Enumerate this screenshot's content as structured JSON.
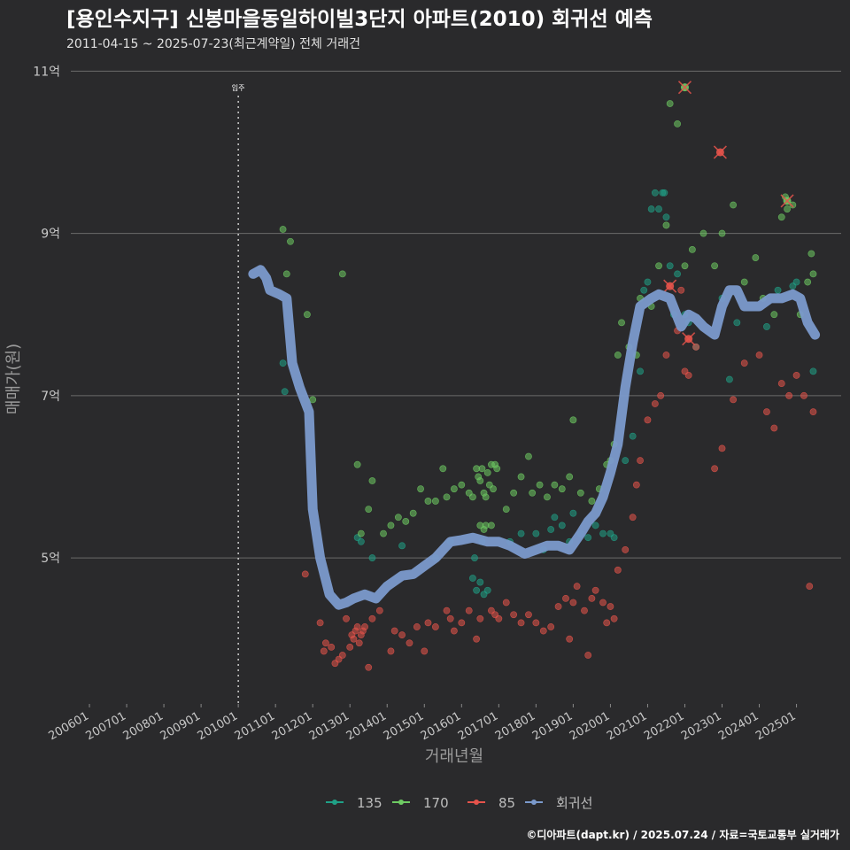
{
  "chart_data": {
    "type": "scatter",
    "title": "[용인수지구] 신봉마을동일하이빌3단지 아파트(2010) 회귀선 예측",
    "subtitle": "2011-04-15 ~ 2025-07-23(최근계약일) 전체 거래건",
    "xlabel": "거래년월",
    "ylabel": "매매가(원)",
    "caption": "©디아파트(dapt.kr) / 2025.07.24 / 자료=국토교통부 실거래가",
    "annotation": {
      "label": "입주",
      "year": 2010.0
    },
    "xlim": [
      2005.5,
      2026.2
    ],
    "ylim": [
      3.2,
      11.2
    ],
    "y_ticks": [
      {
        "value": 5,
        "label": "5억"
      },
      {
        "value": 7,
        "label": "7억"
      },
      {
        "value": 9,
        "label": "9억"
      },
      {
        "value": 11,
        "label": "11억"
      }
    ],
    "x_ticks": [
      {
        "value": 2006,
        "label": "200601"
      },
      {
        "value": 2007,
        "label": "200701"
      },
      {
        "value": 2008,
        "label": "200801"
      },
      {
        "value": 2009,
        "label": "200901"
      },
      {
        "value": 2010,
        "label": "201001"
      },
      {
        "value": 2011,
        "label": "201101"
      },
      {
        "value": 2012,
        "label": "201201"
      },
      {
        "value": 2013,
        "label": "201301"
      },
      {
        "value": 2014,
        "label": "201401"
      },
      {
        "value": 2015,
        "label": "201501"
      },
      {
        "value": 2016,
        "label": "201601"
      },
      {
        "value": 2017,
        "label": "201701"
      },
      {
        "value": 2018,
        "label": "201801"
      },
      {
        "value": 2019,
        "label": "201901"
      },
      {
        "value": 2020,
        "label": "202001"
      },
      {
        "value": 2021,
        "label": "202101"
      },
      {
        "value": 2022,
        "label": "202201"
      },
      {
        "value": 2023,
        "label": "202301"
      },
      {
        "value": 2024,
        "label": "202401"
      },
      {
        "value": 2025,
        "label": "202501"
      }
    ],
    "legend": [
      {
        "name": "135",
        "color": "#1fa187"
      },
      {
        "name": "170",
        "color": "#6ecb63"
      },
      {
        "name": "85",
        "color": "#e5534b"
      },
      {
        "name": "회귀선",
        "color": "#7b9acc"
      }
    ],
    "series": [
      {
        "name": "135",
        "color": "#1fa187",
        "points": [
          [
            2011.2,
            7.4
          ],
          [
            2011.25,
            7.05
          ],
          [
            2013.2,
            5.25
          ],
          [
            2013.3,
            5.2
          ],
          [
            2013.6,
            5.0
          ],
          [
            2014.4,
            5.15
          ],
          [
            2015.3,
            5.0
          ],
          [
            2015.7,
            5.2
          ],
          [
            2016.3,
            4.75
          ],
          [
            2016.4,
            4.6
          ],
          [
            2016.5,
            4.7
          ],
          [
            2016.6,
            4.55
          ],
          [
            2016.35,
            5.0
          ],
          [
            2016.55,
            5.2
          ],
          [
            2016.7,
            4.6
          ],
          [
            2017.3,
            5.2
          ],
          [
            2017.6,
            5.3
          ],
          [
            2018.0,
            5.3
          ],
          [
            2018.2,
            5.1
          ],
          [
            2018.4,
            5.35
          ],
          [
            2018.5,
            5.5
          ],
          [
            2018.7,
            5.4
          ],
          [
            2018.9,
            5.2
          ],
          [
            2019.0,
            5.55
          ],
          [
            2019.2,
            5.3
          ],
          [
            2019.4,
            5.25
          ],
          [
            2019.6,
            5.4
          ],
          [
            2019.8,
            5.3
          ],
          [
            2020.0,
            5.3
          ],
          [
            2020.1,
            5.25
          ],
          [
            2020.4,
            6.2
          ],
          [
            2020.6,
            6.5
          ],
          [
            2020.8,
            7.3
          ],
          [
            2020.9,
            8.3
          ],
          [
            2021.0,
            8.4
          ],
          [
            2021.1,
            9.3
          ],
          [
            2021.2,
            9.5
          ],
          [
            2021.3,
            9.3
          ],
          [
            2021.4,
            9.5
          ],
          [
            2021.45,
            9.5
          ],
          [
            2021.5,
            9.2
          ],
          [
            2021.6,
            8.6
          ],
          [
            2021.7,
            8.0
          ],
          [
            2021.8,
            8.5
          ],
          [
            2022.0,
            8.0
          ],
          [
            2022.1,
            7.9
          ],
          [
            2022.3,
            7.6
          ],
          [
            2023.0,
            8.2
          ],
          [
            2023.2,
            7.2
          ],
          [
            2023.4,
            7.9
          ],
          [
            2024.2,
            7.85
          ],
          [
            2024.5,
            8.3
          ],
          [
            2024.9,
            8.35
          ],
          [
            2025.0,
            8.4
          ],
          [
            2025.45,
            7.3
          ]
        ]
      },
      {
        "name": "170",
        "color": "#6ecb63",
        "points": [
          [
            2011.2,
            9.05
          ],
          [
            2011.3,
            8.5
          ],
          [
            2011.4,
            8.9
          ],
          [
            2011.85,
            8.0
          ],
          [
            2012.0,
            6.95
          ],
          [
            2012.8,
            8.5
          ],
          [
            2013.2,
            6.15
          ],
          [
            2013.3,
            5.3
          ],
          [
            2013.5,
            5.6
          ],
          [
            2013.6,
            5.95
          ],
          [
            2013.9,
            5.3
          ],
          [
            2014.1,
            5.4
          ],
          [
            2014.3,
            5.5
          ],
          [
            2014.5,
            5.45
          ],
          [
            2014.7,
            5.55
          ],
          [
            2014.9,
            5.85
          ],
          [
            2015.1,
            5.7
          ],
          [
            2015.3,
            5.7
          ],
          [
            2015.5,
            6.1
          ],
          [
            2015.6,
            5.75
          ],
          [
            2015.8,
            5.85
          ],
          [
            2016.0,
            5.9
          ],
          [
            2016.2,
            5.8
          ],
          [
            2016.3,
            5.75
          ],
          [
            2016.4,
            6.1
          ],
          [
            2016.45,
            6.0
          ],
          [
            2016.5,
            5.95
          ],
          [
            2016.55,
            6.1
          ],
          [
            2016.6,
            5.8
          ],
          [
            2016.65,
            5.75
          ],
          [
            2016.7,
            6.05
          ],
          [
            2016.75,
            5.9
          ],
          [
            2016.8,
            6.15
          ],
          [
            2016.85,
            5.85
          ],
          [
            2016.9,
            6.15
          ],
          [
            2016.95,
            6.1
          ],
          [
            2016.5,
            5.4
          ],
          [
            2016.6,
            5.35
          ],
          [
            2016.65,
            5.4
          ],
          [
            2016.8,
            5.4
          ],
          [
            2017.2,
            5.6
          ],
          [
            2017.4,
            5.8
          ],
          [
            2017.6,
            6.0
          ],
          [
            2017.8,
            6.25
          ],
          [
            2017.9,
            5.8
          ],
          [
            2018.1,
            5.9
          ],
          [
            2018.3,
            5.75
          ],
          [
            2018.5,
            5.9
          ],
          [
            2018.7,
            5.85
          ],
          [
            2018.9,
            6.0
          ],
          [
            2019.0,
            6.7
          ],
          [
            2019.2,
            5.8
          ],
          [
            2019.5,
            5.7
          ],
          [
            2019.7,
            5.85
          ],
          [
            2019.9,
            6.15
          ],
          [
            2020.0,
            6.2
          ],
          [
            2020.1,
            6.4
          ],
          [
            2020.2,
            7.5
          ],
          [
            2020.3,
            7.9
          ],
          [
            2020.5,
            7.6
          ],
          [
            2020.7,
            7.5
          ],
          [
            2020.8,
            8.2
          ],
          [
            2021.1,
            8.1
          ],
          [
            2021.3,
            8.6
          ],
          [
            2021.5,
            9.1
          ],
          [
            2021.6,
            10.6
          ],
          [
            2021.8,
            10.35
          ],
          [
            2022.0,
            8.6
          ],
          [
            2022.2,
            8.8
          ],
          [
            2022.5,
            9.0
          ],
          [
            2022.8,
            8.6
          ],
          [
            2023.0,
            9.0
          ],
          [
            2023.3,
            9.35
          ],
          [
            2023.6,
            8.4
          ],
          [
            2023.9,
            8.7
          ],
          [
            2024.1,
            8.2
          ],
          [
            2024.4,
            8.0
          ],
          [
            2024.6,
            9.2
          ],
          [
            2024.7,
            9.45
          ],
          [
            2024.75,
            9.3
          ],
          [
            2024.9,
            9.35
          ],
          [
            2025.1,
            8.0
          ],
          [
            2025.3,
            8.4
          ],
          [
            2025.4,
            8.75
          ],
          [
            2025.45,
            8.5
          ]
        ]
      },
      {
        "name": "85",
        "color": "#e5534b",
        "points": [
          [
            2011.8,
            4.8
          ],
          [
            2012.2,
            4.2
          ],
          [
            2012.3,
            3.85
          ],
          [
            2012.35,
            3.95
          ],
          [
            2012.5,
            3.9
          ],
          [
            2012.6,
            3.7
          ],
          [
            2012.7,
            3.75
          ],
          [
            2012.8,
            3.8
          ],
          [
            2012.9,
            4.25
          ],
          [
            2013.0,
            3.9
          ],
          [
            2013.05,
            4.05
          ],
          [
            2013.1,
            4.0
          ],
          [
            2013.15,
            4.1
          ],
          [
            2013.2,
            4.15
          ],
          [
            2013.25,
            3.95
          ],
          [
            2013.3,
            4.05
          ],
          [
            2013.35,
            4.1
          ],
          [
            2013.4,
            4.15
          ],
          [
            2013.5,
            3.65
          ],
          [
            2013.6,
            4.25
          ],
          [
            2013.8,
            4.35
          ],
          [
            2014.1,
            3.85
          ],
          [
            2014.2,
            4.1
          ],
          [
            2014.4,
            4.05
          ],
          [
            2014.6,
            3.95
          ],
          [
            2014.8,
            4.15
          ],
          [
            2015.0,
            3.85
          ],
          [
            2015.1,
            4.2
          ],
          [
            2015.3,
            4.15
          ],
          [
            2015.6,
            4.35
          ],
          [
            2015.7,
            4.25
          ],
          [
            2015.8,
            4.1
          ],
          [
            2016.0,
            4.2
          ],
          [
            2016.2,
            4.35
          ],
          [
            2016.4,
            4.0
          ],
          [
            2016.5,
            4.25
          ],
          [
            2016.8,
            4.35
          ],
          [
            2016.9,
            4.3
          ],
          [
            2017.0,
            4.25
          ],
          [
            2017.2,
            4.45
          ],
          [
            2017.4,
            4.3
          ],
          [
            2017.6,
            4.2
          ],
          [
            2017.8,
            4.3
          ],
          [
            2018.0,
            4.2
          ],
          [
            2018.2,
            4.1
          ],
          [
            2018.4,
            4.15
          ],
          [
            2018.6,
            4.4
          ],
          [
            2018.8,
            4.5
          ],
          [
            2018.9,
            4.0
          ],
          [
            2019.0,
            4.45
          ],
          [
            2019.1,
            4.65
          ],
          [
            2019.3,
            4.35
          ],
          [
            2019.4,
            3.8
          ],
          [
            2019.5,
            4.5
          ],
          [
            2019.6,
            4.6
          ],
          [
            2019.8,
            4.45
          ],
          [
            2019.9,
            4.2
          ],
          [
            2020.0,
            4.4
          ],
          [
            2020.1,
            4.25
          ],
          [
            2020.2,
            4.85
          ],
          [
            2020.4,
            5.1
          ],
          [
            2020.6,
            5.5
          ],
          [
            2020.7,
            5.9
          ],
          [
            2020.8,
            6.2
          ],
          [
            2021.0,
            6.7
          ],
          [
            2021.2,
            6.9
          ],
          [
            2021.35,
            7.0
          ],
          [
            2021.5,
            7.5
          ],
          [
            2021.8,
            7.8
          ],
          [
            2021.9,
            8.3
          ],
          [
            2022.0,
            7.3
          ],
          [
            2022.1,
            7.25
          ],
          [
            2022.3,
            7.6
          ],
          [
            2022.8,
            6.1
          ],
          [
            2023.0,
            6.35
          ],
          [
            2023.3,
            6.95
          ],
          [
            2023.6,
            7.4
          ],
          [
            2024.0,
            7.5
          ],
          [
            2024.2,
            6.8
          ],
          [
            2024.4,
            6.6
          ],
          [
            2024.6,
            7.15
          ],
          [
            2024.8,
            7.0
          ],
          [
            2025.0,
            7.25
          ],
          [
            2025.2,
            7.0
          ],
          [
            2025.35,
            4.65
          ],
          [
            2025.45,
            6.8
          ]
        ]
      }
    ],
    "highlighted": [
      {
        "series": "170",
        "x": 2022.0,
        "y": 10.8
      },
      {
        "series": "85",
        "x": 2022.95,
        "y": 10.0
      },
      {
        "series": "170",
        "x": 2024.75,
        "y": 9.4
      },
      {
        "series": "85",
        "x": 2021.6,
        "y": 8.35
      },
      {
        "series": "85",
        "x": 2022.1,
        "y": 7.7
      }
    ],
    "regression": {
      "name": "회귀선",
      "color": "#7b9acc",
      "x": [
        2010.4,
        2010.6,
        2010.75,
        2010.85,
        2011.1,
        2011.3,
        2011.45,
        2011.65,
        2011.9,
        2012.0,
        2012.2,
        2012.45,
        2012.7,
        2012.9,
        2013.1,
        2013.4,
        2013.7,
        2014.0,
        2014.4,
        2014.7,
        2015.0,
        2015.3,
        2015.7,
        2016.0,
        2016.3,
        2016.7,
        2017.0,
        2017.3,
        2017.7,
        2018.0,
        2018.3,
        2018.6,
        2018.9,
        2019.2,
        2019.4,
        2019.6,
        2019.8,
        2020.0,
        2020.2,
        2020.4,
        2020.6,
        2020.8,
        2020.95,
        2021.1,
        2021.3,
        2021.6,
        2021.9,
        2022.1,
        2022.3,
        2022.5,
        2022.8,
        2023.0,
        2023.2,
        2023.4,
        2023.6,
        2023.8,
        2024.0,
        2024.3,
        2024.6,
        2024.9,
        2025.1,
        2025.3,
        2025.5
      ],
      "y": [
        8.5,
        8.55,
        8.45,
        8.3,
        8.25,
        8.2,
        7.4,
        7.1,
        6.8,
        5.6,
        5.0,
        4.55,
        4.42,
        4.45,
        4.5,
        4.55,
        4.5,
        4.65,
        4.78,
        4.8,
        4.9,
        5.0,
        5.2,
        5.22,
        5.25,
        5.2,
        5.2,
        5.15,
        5.05,
        5.1,
        5.15,
        5.15,
        5.1,
        5.3,
        5.45,
        5.55,
        5.75,
        6.05,
        6.4,
        7.1,
        7.65,
        8.1,
        8.15,
        8.2,
        8.25,
        8.2,
        7.85,
        8.0,
        7.95,
        7.85,
        7.75,
        8.1,
        8.3,
        8.3,
        8.1,
        8.1,
        8.1,
        8.2,
        8.2,
        8.25,
        8.2,
        7.9,
        7.75
      ]
    }
  }
}
